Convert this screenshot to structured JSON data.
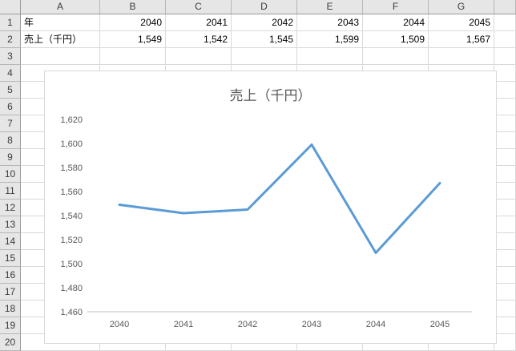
{
  "spreadsheet": {
    "column_headers": [
      "A",
      "B",
      "C",
      "D",
      "E",
      "F",
      "G",
      ""
    ],
    "row_headers": [
      "1",
      "2",
      "3",
      "4",
      "5",
      "6",
      "7",
      "8",
      "9",
      "10",
      "11",
      "12",
      "13",
      "14",
      "15",
      "16",
      "17",
      "18",
      "19",
      "20"
    ],
    "rows": [
      {
        "cells": [
          "年",
          "2040",
          "2041",
          "2042",
          "2043",
          "2044",
          "2045",
          ""
        ]
      },
      {
        "cells": [
          "売上（千円）",
          "1,549",
          "1,542",
          "1,545",
          "1,599",
          "1,509",
          "1,567",
          ""
        ]
      }
    ]
  },
  "chart_data": {
    "type": "line",
    "title": "売上（千円）",
    "categories": [
      "2040",
      "2041",
      "2042",
      "2043",
      "2044",
      "2045"
    ],
    "values": [
      1549,
      1542,
      1545,
      1599,
      1509,
      1567
    ],
    "ylim": [
      1460,
      1620
    ],
    "ytick_step": 20,
    "ytick_labels": [
      "1,620",
      "1,600",
      "1,580",
      "1,560",
      "1,540",
      "1,520",
      "1,500",
      "1,480",
      "1,460"
    ],
    "legend": "none",
    "grid": "off",
    "line_color": "#5B9BD5",
    "axis_color": "#BFBFBF",
    "label_color": "#595959"
  },
  "colors": {
    "header_bg": "#E6E6E6",
    "gridline": "#D9D9D9",
    "chart_border": "#D9D9D9"
  }
}
